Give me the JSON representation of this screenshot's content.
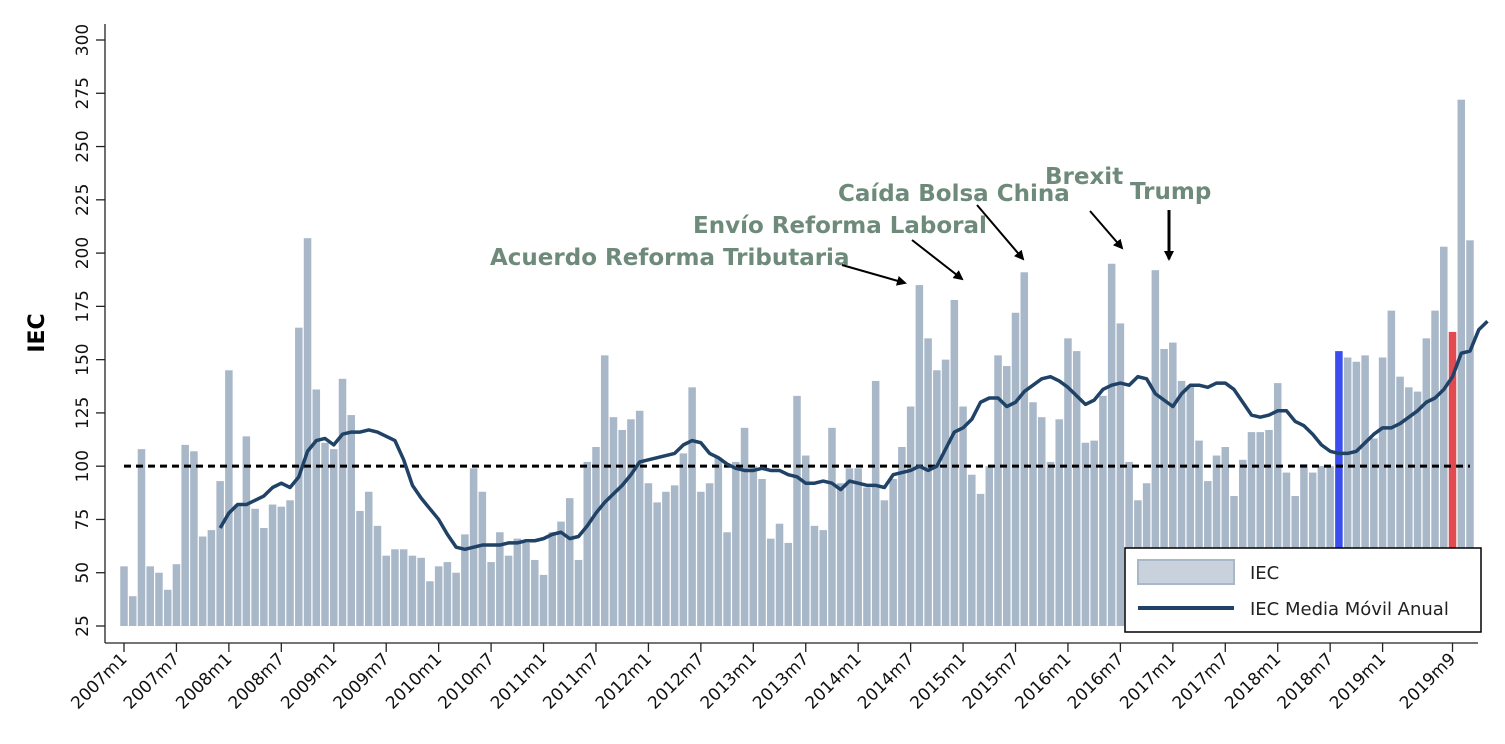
{
  "chart_data": {
    "type": "bar",
    "ylabel": "IEC",
    "ylim": [
      25,
      300
    ],
    "yticks": [
      25,
      50,
      75,
      100,
      125,
      150,
      175,
      200,
      225,
      250,
      275,
      300
    ],
    "reference_line": 100,
    "x_tick_labels": [
      "2007m1",
      "2007m7",
      "2008m1",
      "2008m7",
      "2009m1",
      "2009m7",
      "2010m1",
      "2010m7",
      "2011m1",
      "2011m7",
      "2012m1",
      "2012m7",
      "2013m1",
      "2013m7",
      "2014m1",
      "2014m7",
      "2015m1",
      "2015m7",
      "2016m1",
      "2016m7",
      "2017m1",
      "2017m7",
      "2018m1",
      "2018m7",
      "2019m1",
      "2019m9"
    ],
    "x_tick_index": [
      0,
      6,
      12,
      18,
      24,
      30,
      36,
      42,
      48,
      54,
      60,
      66,
      72,
      78,
      84,
      90,
      96,
      102,
      108,
      114,
      120,
      126,
      132,
      138,
      144,
      152
    ],
    "first_period": "2007m1",
    "last_period": "2019m9",
    "series": [
      {
        "name": "IEC",
        "type": "bar",
        "color": "#a9b8c9",
        "values": [
          53,
          39,
          108,
          53,
          50,
          42,
          54,
          110,
          107,
          67,
          70,
          93,
          145,
          82,
          114,
          80,
          71,
          82,
          81,
          84,
          165,
          207,
          136,
          111,
          108,
          141,
          124,
          79,
          88,
          72,
          58,
          61,
          61,
          58,
          57,
          46,
          53,
          55,
          50,
          68,
          99,
          88,
          55,
          69,
          58,
          66,
          64,
          56,
          49,
          69,
          74,
          85,
          56,
          102,
          109,
          152,
          123,
          117,
          122,
          126,
          92,
          83,
          88,
          91,
          106,
          137,
          88,
          92,
          104,
          69,
          102,
          118,
          100,
          94,
          66,
          73,
          64,
          133,
          105,
          72,
          70,
          118,
          92,
          99,
          99,
          90,
          140,
          84,
          94,
          109,
          128,
          185,
          160,
          145,
          150,
          178,
          128,
          96,
          87,
          100,
          152,
          147,
          172,
          191,
          130,
          123,
          102,
          122,
          160,
          154,
          111,
          112,
          133,
          195,
          167,
          102,
          84,
          92,
          192,
          155,
          158,
          140,
          138,
          112,
          93,
          105,
          109,
          86,
          103,
          116,
          116,
          117,
          139,
          97,
          86,
          101,
          97,
          100,
          100,
          154,
          151,
          149,
          152,
          113,
          151,
          173,
          142,
          137,
          135,
          160,
          173,
          203,
          163,
          272,
          206
        ],
        "highlight": [
          {
            "index": 139,
            "color": "#3a4ef0"
          },
          {
            "index": 152,
            "color": "#e04a50"
          }
        ]
      },
      {
        "name": "IEC Media Móvil Anual",
        "type": "line",
        "color": "#1f4266",
        "start_index": 11,
        "values": [
          71,
          78,
          82,
          82,
          84,
          86,
          90,
          92,
          90,
          95,
          107,
          112,
          113,
          110,
          115,
          116,
          116,
          117,
          116,
          114,
          112,
          103,
          91,
          85,
          80,
          75,
          68,
          62,
          61,
          62,
          63,
          63,
          63,
          64,
          64,
          65,
          65,
          66,
          68,
          69,
          66,
          67,
          72,
          78,
          83,
          87,
          91,
          96,
          102,
          103,
          104,
          105,
          106,
          110,
          112,
          111,
          106,
          104,
          101,
          99,
          98,
          98,
          99,
          98,
          98,
          96,
          95,
          92,
          92,
          93,
          92,
          89,
          93,
          92,
          91,
          91,
          90,
          96,
          97,
          98,
          100,
          98,
          100,
          108,
          116,
          118,
          122,
          130,
          132,
          132,
          128,
          130,
          135,
          138,
          141,
          142,
          140,
          137,
          133,
          129,
          131,
          136,
          138,
          139,
          138,
          142,
          141,
          134,
          131,
          128,
          134,
          138,
          138,
          137,
          139,
          139,
          136,
          130,
          124,
          123,
          124,
          126,
          126,
          121,
          119,
          115,
          110,
          107,
          106,
          106,
          107,
          111,
          115,
          118,
          118,
          120,
          123,
          126,
          130,
          132,
          136,
          142,
          153,
          154,
          164,
          168
        ]
      }
    ],
    "annotations": [
      {
        "label": "Acuerdo Reforma Tributaria",
        "target_index": 92
      },
      {
        "label": "Envío Reforma Laboral",
        "target_index": 95
      },
      {
        "label": "Caída Bolsa China",
        "target_index": 103
      },
      {
        "label": "Brexit",
        "target_index": 113
      },
      {
        "label": "Trump",
        "target_index": 118
      }
    ],
    "legend": {
      "position": "bottom-right",
      "items": [
        {
          "label": "IEC",
          "kind": "bar"
        },
        {
          "label": "IEC Media Móvil Anual",
          "kind": "line"
        }
      ]
    }
  }
}
